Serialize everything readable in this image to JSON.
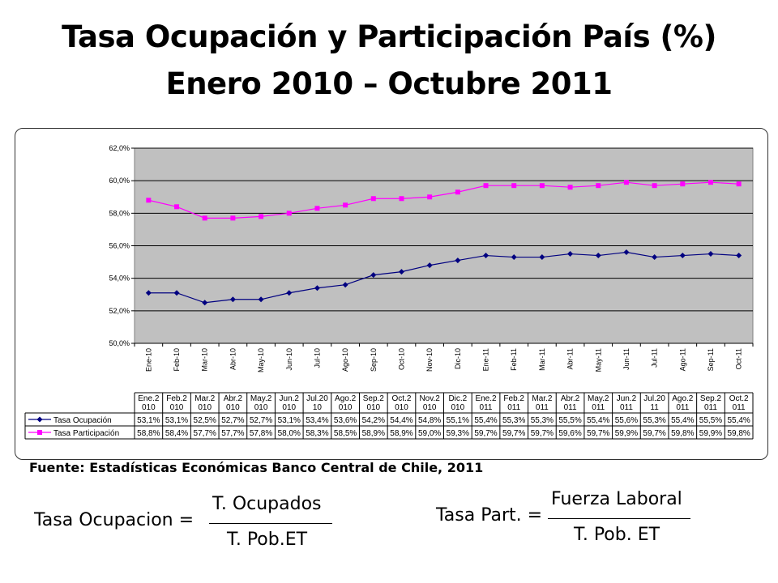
{
  "title_line1": "Tasa Ocupación y Participación País (%)",
  "title_line2": "Enero 2010 – Octubre 2011",
  "source": "Fuente: Estadísticas Económicas Banco Central de Chile, 2011",
  "formula_ocupacion": {
    "lhs": "Tasa Ocupacion =",
    "num": "T. Ocupados",
    "den": "T. Pob.ET"
  },
  "formula_participacion": {
    "lhs": "Tasa Part. =",
    "num": "Fuerza Laboral",
    "den": "T. Pob. ET"
  },
  "chart_data": {
    "type": "line",
    "categories": [
      "Ene-10",
      "Feb-10",
      "Mar-10",
      "Abr-10",
      "May-10",
      "Jun-10",
      "Jul-10",
      "Ago-10",
      "Sep-10",
      "Oct-10",
      "Nov-10",
      "Dic-10",
      "Ene-11",
      "Feb-11",
      "Mar-11",
      "Abr-11",
      "May-11",
      "Jun-11",
      "Jul-11",
      "Ago-11",
      "Sep-11",
      "Oct-11"
    ],
    "table_headers": [
      [
        "Ene.2",
        "010"
      ],
      [
        "Feb.2",
        "010"
      ],
      [
        "Mar.2",
        "010"
      ],
      [
        "Abr.2",
        "010"
      ],
      [
        "May.2",
        "010"
      ],
      [
        "Jun.2",
        "010"
      ],
      [
        "Jul.20",
        "10"
      ],
      [
        "Ago.2",
        "010"
      ],
      [
        "Sep.2",
        "010"
      ],
      [
        "Oct.2",
        "010"
      ],
      [
        "Nov.2",
        "010"
      ],
      [
        "Dic.2",
        "010"
      ],
      [
        "Ene.2",
        "011"
      ],
      [
        "Feb.2",
        "011"
      ],
      [
        "Mar.2",
        "011"
      ],
      [
        "Abr.2",
        "011"
      ],
      [
        "May.2",
        "011"
      ],
      [
        "Jun.2",
        "011"
      ],
      [
        "Jul.20",
        "11"
      ],
      [
        "Ago.2",
        "011"
      ],
      [
        "Sep.2",
        "011"
      ],
      [
        "Oct.2",
        "011"
      ]
    ],
    "series": [
      {
        "name": "Tasa Ocupación",
        "color": "#000080",
        "marker": "diamond",
        "values": [
          53.1,
          53.1,
          52.5,
          52.7,
          52.7,
          53.1,
          53.4,
          53.6,
          54.2,
          54.4,
          54.8,
          55.1,
          55.4,
          55.3,
          55.3,
          55.5,
          55.4,
          55.6,
          55.3,
          55.4,
          55.5,
          55.4
        ],
        "labels": [
          "53,1%",
          "53,1%",
          "52,5%",
          "52,7%",
          "52,7%",
          "53,1%",
          "53,4%",
          "53,6%",
          "54,2%",
          "54,4%",
          "54,8%",
          "55,1%",
          "55,4%",
          "55,3%",
          "55,3%",
          "55,5%",
          "55,4%",
          "55,6%",
          "55,3%",
          "55,4%",
          "55,5%",
          "55,4%"
        ]
      },
      {
        "name": "Tasa Participación",
        "color": "#ff00ff",
        "marker": "square",
        "values": [
          58.8,
          58.4,
          57.7,
          57.7,
          57.8,
          58.0,
          58.3,
          58.5,
          58.9,
          58.9,
          59.0,
          59.3,
          59.7,
          59.7,
          59.7,
          59.6,
          59.7,
          59.9,
          59.7,
          59.8,
          59.9,
          59.8
        ],
        "labels": [
          "58,8%",
          "58,4%",
          "57,7%",
          "57,7%",
          "57,8%",
          "58,0%",
          "58,3%",
          "58,5%",
          "58,9%",
          "58,9%",
          "59,0%",
          "59,3%",
          "59,7%",
          "59,7%",
          "59,7%",
          "59,6%",
          "59,7%",
          "59,9%",
          "59,7%",
          "59,8%",
          "59,9%",
          "59,8%"
        ]
      }
    ],
    "ylim": [
      50,
      62
    ],
    "yticks": [
      50,
      52,
      54,
      56,
      58,
      60,
      62
    ],
    "ytick_labels": [
      "50,0%",
      "52,0%",
      "54,0%",
      "56,0%",
      "58,0%",
      "60,0%",
      "62,0%"
    ],
    "grid": true,
    "plot_background": "#c0c0c0",
    "legend": "data-table"
  }
}
